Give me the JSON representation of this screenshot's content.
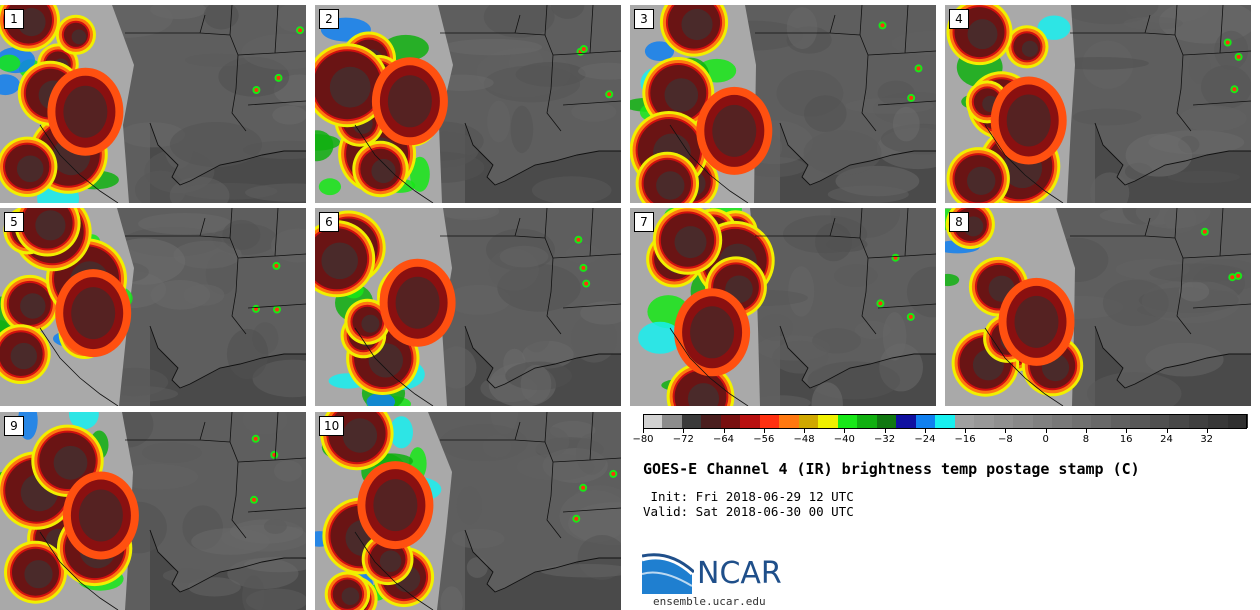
{
  "panels": [
    {
      "label": "1"
    },
    {
      "label": "2"
    },
    {
      "label": "3"
    },
    {
      "label": "4"
    },
    {
      "label": "5"
    },
    {
      "label": "6"
    },
    {
      "label": "7"
    },
    {
      "label": "8"
    },
    {
      "label": "9"
    },
    {
      "label": "10"
    }
  ],
  "colorbar": {
    "colors": [
      "#d2d2d2",
      "#8c8c8c",
      "#3a3a3a",
      "#4a1e1e",
      "#781010",
      "#b81010",
      "#ff3010",
      "#ff7810",
      "#d0a800",
      "#f0f000",
      "#18e818",
      "#10b010",
      "#107810",
      "#1010a0",
      "#1080f0",
      "#18f0f0",
      "#a0a0a0",
      "#989898",
      "#909090",
      "#888888",
      "#808080",
      "#787878",
      "#707070",
      "#686868",
      "#606060",
      "#585858",
      "#505050",
      "#484848",
      "#404040",
      "#383838",
      "#303030"
    ],
    "tick_values": [
      -80,
      -72,
      -64,
      -56,
      -48,
      -40,
      -32,
      -24,
      -16,
      -8,
      0,
      8,
      16,
      24,
      32
    ],
    "tick_labels": [
      "−80",
      "−72",
      "−64",
      "−56",
      "−48",
      "−40",
      "−32",
      "−24",
      "−16",
      "−8",
      "0",
      "8",
      "16",
      "24",
      "32"
    ],
    "min": -80,
    "max": 40
  },
  "title": "GOES-E Channel 4 (IR) brightness temp postage stamp (C)",
  "init": " Init: Fri 2018-06-29 12 UTC",
  "valid": "Valid: Sat 2018-06-30 00 UTC",
  "logo_text": "NCAR",
  "url": "ensemble.ucar.edu"
}
